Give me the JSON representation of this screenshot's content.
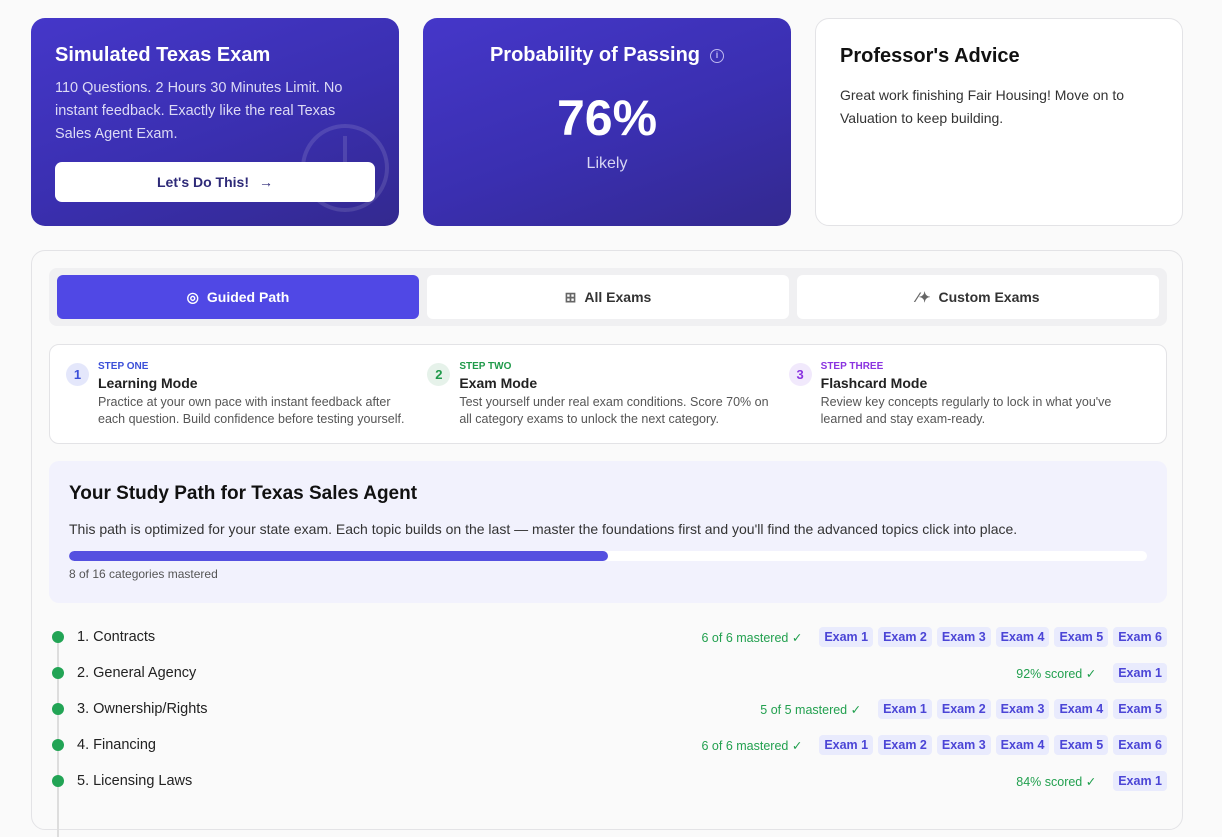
{
  "exam_card": {
    "title": "Simulated Texas Exam",
    "description": "110 Questions. 2 Hours 30 Minutes Limit. No instant feedback. Exactly like the real Texas Sales Agent Exam.",
    "button": "Let's Do This!",
    "arrow": "→"
  },
  "probability": {
    "title": "Probability of Passing",
    "info": "i",
    "value": "76%",
    "label": "Likely"
  },
  "advice": {
    "title": "Professor's Advice",
    "text": "Great work finishing Fair Housing! Move on to Valuation to keep building."
  },
  "tabs": [
    {
      "label": "Guided Path",
      "icon": "compass-icon",
      "active": true
    },
    {
      "label": "All Exams",
      "icon": "grid-icon"
    },
    {
      "label": "Custom Exams",
      "icon": "magic-wand-icon"
    }
  ],
  "steps": [
    {
      "num": "1",
      "label": "STEP ONE",
      "title": "Learning Mode",
      "desc": "Practice at your own pace with instant feedback after each question. Build confidence before testing yourself.",
      "color": "#3b4fd8",
      "bg": "#e4e7fb"
    },
    {
      "num": "2",
      "label": "STEP TWO",
      "title": "Exam Mode",
      "desc": "Test yourself under real exam conditions. Score 70% on all category exams to unlock the next category.",
      "color": "#1f9a4a",
      "bg": "#e6f2ea"
    },
    {
      "num": "3",
      "label": "STEP THREE",
      "title": "Flashcard Mode",
      "desc": "Review key concepts regularly to lock in what you've learned and stay exam-ready.",
      "color": "#8a33e0",
      "bg": "#f1e9fc"
    }
  ],
  "study_path": {
    "title": "Your Study Path for Texas Sales Agent",
    "description": "This path is optimized for your state exam. Each topic builds on the last — master the foundations first and you'll find the advanced topics click into place.",
    "progress_fraction": 0.5,
    "progress_label": "8 of 16 categories mastered"
  },
  "categories": [
    {
      "name": "1. Contracts",
      "status": "6 of 6 mastered ✓",
      "exams": [
        "Exam 1",
        "Exam 2",
        "Exam 3",
        "Exam 4",
        "Exam 5",
        "Exam 6"
      ]
    },
    {
      "name": "2. General Agency",
      "status": "92% scored ✓",
      "exams": [
        "Exam 1"
      ]
    },
    {
      "name": "3. Ownership/Rights",
      "status": "5 of 5 mastered ✓",
      "exams": [
        "Exam 1",
        "Exam 2",
        "Exam 3",
        "Exam 4",
        "Exam 5"
      ]
    },
    {
      "name": "4. Financing",
      "status": "6 of 6 mastered ✓",
      "exams": [
        "Exam 1",
        "Exam 2",
        "Exam 3",
        "Exam 4",
        "Exam 5",
        "Exam 6"
      ]
    },
    {
      "name": "5. Licensing Laws",
      "status": "84% scored ✓",
      "exams": [
        "Exam 1"
      ]
    }
  ]
}
